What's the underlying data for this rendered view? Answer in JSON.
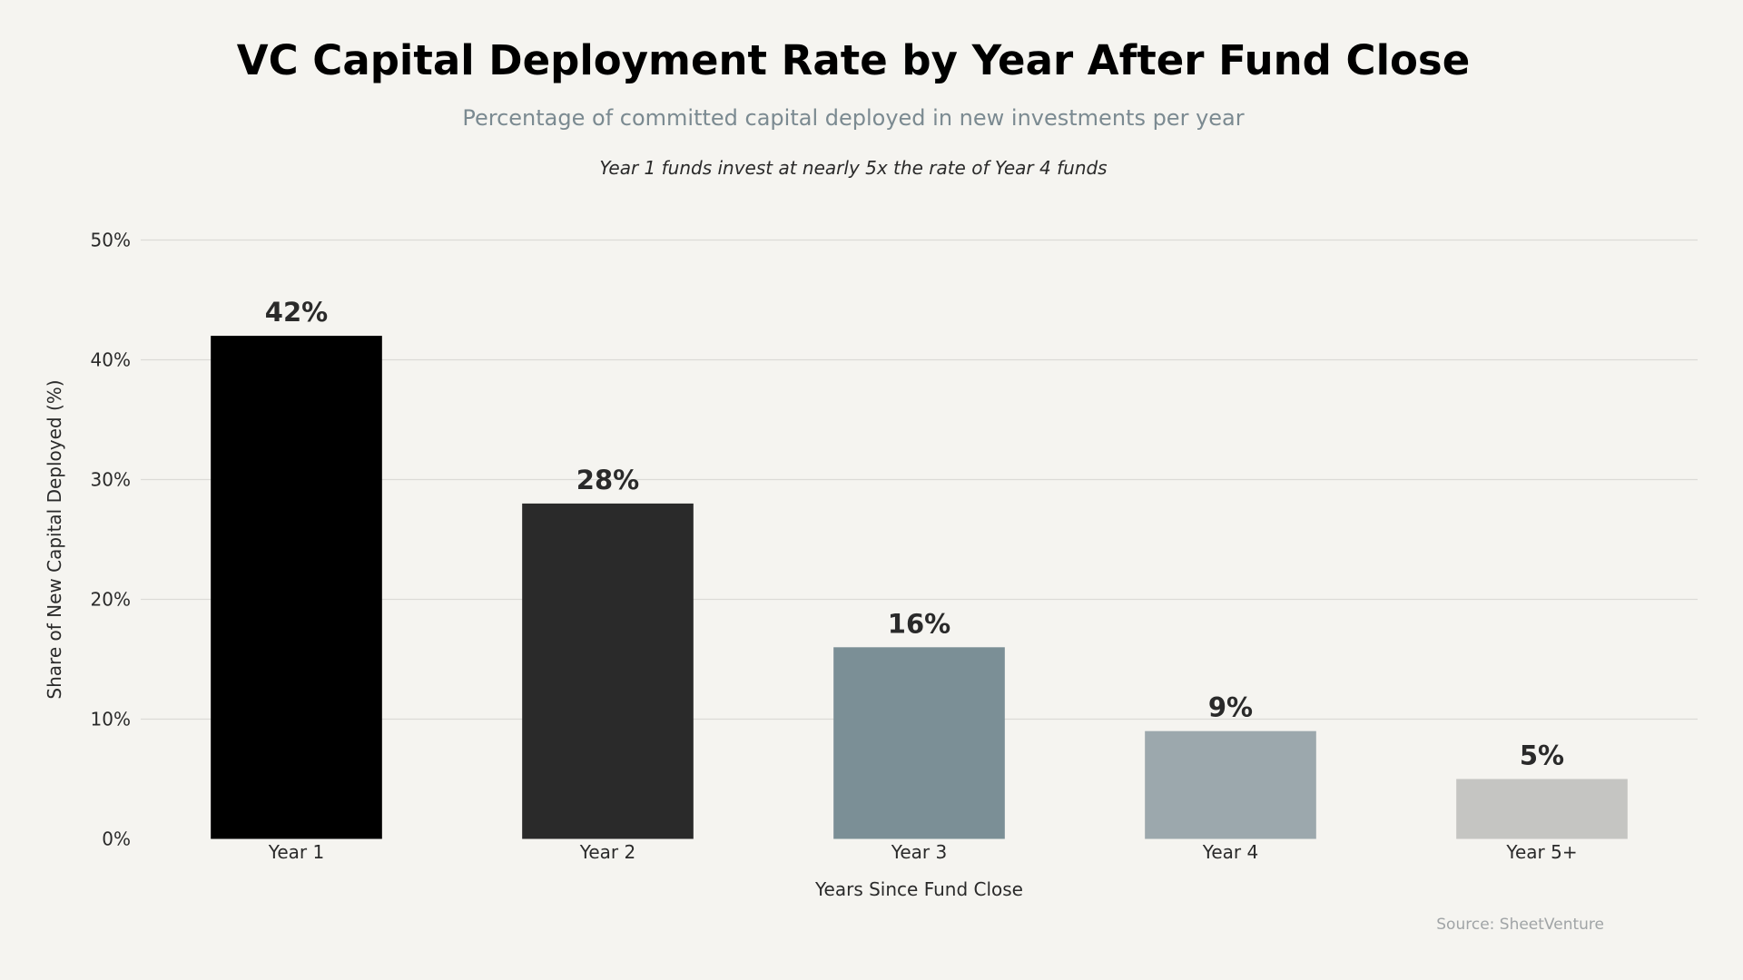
{
  "title": "VC Capital Deployment Rate by Year After Fund Close",
  "subtitle": "Percentage of committed capital deployed in new investments per year",
  "annotation": "Year 1 funds invest at nearly 5x the rate of Year 4 funds",
  "source": "Source: SheetVenture",
  "chart_data": {
    "type": "bar",
    "title": "VC Capital Deployment Rate by Year After Fund Close",
    "xlabel": "Years Since Fund Close",
    "ylabel": "Share of New Capital Deployed (%)",
    "categories": [
      "Year 1",
      "Year 2",
      "Year 3",
      "Year 4",
      "Year 5+"
    ],
    "values": [
      42,
      28,
      16,
      9,
      5
    ],
    "data_labels": [
      "42%",
      "28%",
      "16%",
      "9%",
      "5%"
    ],
    "colors": [
      "#000000",
      "#2a2a2a",
      "#7b8f96",
      "#9ca8ad",
      "#c5c5c2"
    ],
    "ylim": [
      0,
      50
    ],
    "yticks": [
      0,
      10,
      20,
      30,
      40,
      50
    ],
    "ytick_labels": [
      "0%",
      "10%",
      "20%",
      "30%",
      "40%",
      "50%"
    ],
    "grid": "horizontal",
    "legend": "none"
  }
}
